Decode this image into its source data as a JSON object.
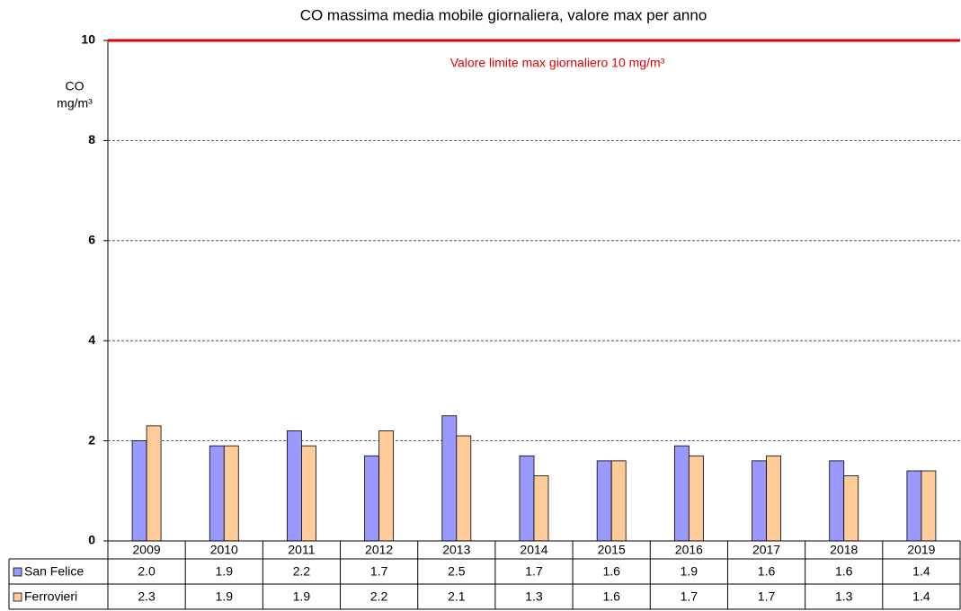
{
  "chart_data": {
    "type": "bar",
    "title": "CO massima media mobile giornaliera, valore max per anno",
    "y_label": [
      "CO",
      "mg/m³"
    ],
    "categories": [
      "2009",
      "2010",
      "2011",
      "2012",
      "2013",
      "2014",
      "2015",
      "2016",
      "2017",
      "2018",
      "2019"
    ],
    "series": [
      {
        "name": "San Felice",
        "color": "#9999ff",
        "values": [
          2.0,
          1.9,
          2.2,
          1.7,
          2.5,
          1.7,
          1.6,
          1.9,
          1.6,
          1.6,
          1.4
        ],
        "value_labels": [
          "2.0",
          "1.9",
          "2.2",
          "1.7",
          "2.5",
          "1.7",
          "1.6",
          "1.9",
          "1.6",
          "1.6",
          "1.4"
        ]
      },
      {
        "name": "Ferrovieri",
        "color": "#ffcc99",
        "values": [
          2.3,
          1.9,
          1.9,
          2.2,
          2.1,
          1.3,
          1.6,
          1.7,
          1.7,
          1.3,
          1.4
        ],
        "value_labels": [
          "2.3",
          "1.9",
          "1.9",
          "2.2",
          "2.1",
          "1.3",
          "1.6",
          "1.7",
          "1.7",
          "1.3",
          "1.4"
        ]
      }
    ],
    "ylim": [
      0,
      10
    ],
    "yticks": [
      0,
      2,
      4,
      6,
      8,
      10
    ],
    "grid": true,
    "limit": {
      "value": 10,
      "label": "Valore limite  max giornaliero 10 mg/m³",
      "color": "#e00000"
    },
    "data_table": true
  }
}
